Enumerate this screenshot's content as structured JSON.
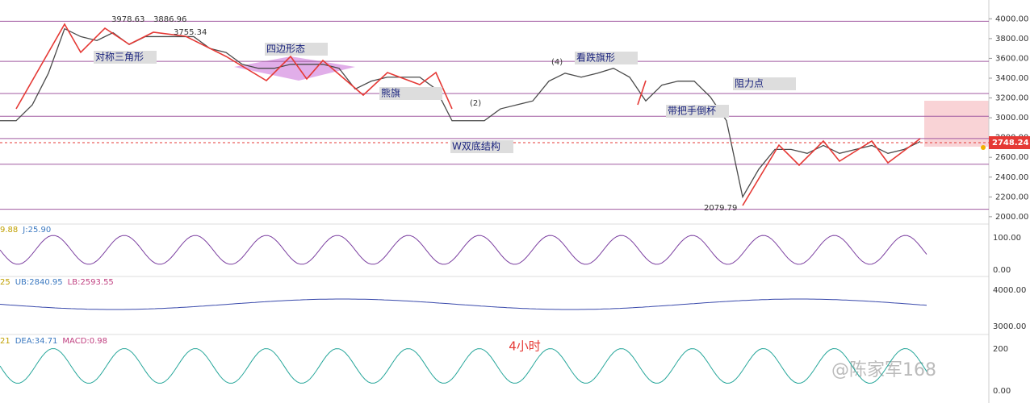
{
  "chart_data": {
    "type": "line",
    "categories": [
      null,
      null,
      null,
      null,
      null,
      null,
      null,
      null,
      null,
      null,
      null,
      null,
      null,
      null,
      null,
      null,
      null,
      null,
      null,
      null,
      null,
      null,
      null,
      null,
      null,
      null,
      null,
      null,
      null,
      null,
      null,
      null,
      null,
      null,
      null,
      null,
      null,
      null,
      null,
      null,
      null,
      null,
      null,
      null,
      null,
      null,
      null,
      null,
      null,
      null,
      null,
      null,
      null,
      null,
      null,
      null,
      null,
      null
    ],
    "series": [
      {
        "color": "#4a4a4a",
        "values": [
          2970,
          2970,
          3130,
          3450,
          3900,
          3820,
          3780,
          3860,
          3740,
          3820,
          3820,
          3820,
          3820,
          3700,
          3660,
          3540,
          3500,
          3500,
          3540,
          3540,
          3540,
          3500,
          3290,
          3370,
          3410,
          3410,
          3410,
          3290,
          2970,
          2970,
          2970,
          3090,
          3130,
          3170,
          3370,
          3450,
          3410,
          3450,
          3500,
          3410,
          3170,
          3330,
          3370,
          3370,
          3210,
          2970,
          2200,
          2480,
          2680,
          2680,
          2640,
          2720,
          2640,
          2680,
          2720,
          2640,
          2680,
          2760
        ]
      }
    ],
    "ylim": [
      1950,
      4190
    ],
    "yticks": [
      {
        "value": 2000,
        "label": "2000.00"
      },
      {
        "value": 2200,
        "label": "2200.00"
      },
      {
        "value": 2400,
        "label": "2400.00"
      },
      {
        "value": 2600,
        "label": "2600.00"
      },
      {
        "value": 2800,
        "label": "2800.00"
      },
      {
        "value": 3000,
        "label": "3000.00"
      },
      {
        "value": 3200,
        "label": "3200.00"
      },
      {
        "value": 3400,
        "label": "3400.00"
      },
      {
        "value": 3600,
        "label": "3600.00"
      },
      {
        "value": 3800,
        "label": "3800.00"
      },
      {
        "value": 4000,
        "label": "4000.00"
      }
    ],
    "levels": [
      3975,
      3570,
      3245,
      3015,
      2790,
      2530,
      2075
    ],
    "level_color": "#a05aa0",
    "last_price": {
      "value": 2748.24,
      "label": "2748.24"
    },
    "annotations": [
      "3978.63",
      "3886.96",
      "3755.34",
      "2079.79",
      "对称三角形",
      "四边形态",
      "熊旗",
      "(2)",
      "(4)",
      "看跌旗形",
      "阻力点",
      "带把手倒杯",
      "W双底结构"
    ],
    "timeframe": "4小时",
    "watermark": "@陈家军168",
    "indicators": [
      {
        "labels": [
          "9.88",
          "J:25.90"
        ],
        "ticks": [
          "100.00",
          "0.00"
        ]
      },
      {
        "labels": [
          "25",
          "UB:2840.95",
          "LB:2593.55"
        ],
        "ticks": [
          "4000.00",
          "3000.00"
        ]
      },
      {
        "labels": [
          "21",
          "DEA:34.71",
          "MACD:0.98"
        ],
        "ticks": [
          "200",
          "0.00"
        ]
      }
    ]
  }
}
